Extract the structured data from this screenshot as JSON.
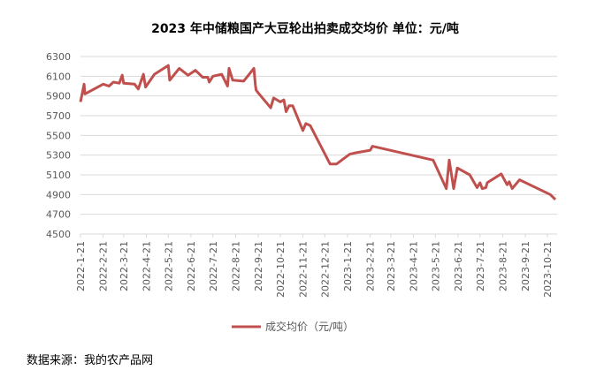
{
  "chart_data": {
    "type": "line",
    "title": "2023 年中储粮国产大豆轮出拍卖成交均价  单位：元/吨",
    "source": "数据来源：我的农产品网",
    "x": [
      "2022-1-21",
      "2022-1-26",
      "2022-1-27",
      "2022-2-21",
      "2022-3-1",
      "2022-3-7",
      "2022-3-15",
      "2022-3-19",
      "2022-3-21",
      "2022-4-5",
      "2022-4-10",
      "2022-4-17",
      "2022-4-20",
      "2022-5-2",
      "2022-5-21",
      "2022-5-23",
      "2022-6-5",
      "2022-6-17",
      "2022-6-27",
      "2022-7-7",
      "2022-7-14",
      "2022-7-16",
      "2022-7-21",
      "2022-8-2",
      "2022-8-10",
      "2022-8-12",
      "2022-8-17",
      "2022-9-1",
      "2022-9-15",
      "2022-9-17",
      "2022-9-18",
      "2022-9-21",
      "2022-10-8",
      "2022-10-12",
      "2022-10-21",
      "2022-10-26",
      "2022-10-29",
      "2022-11-2",
      "2022-11-7",
      "2022-11-21",
      "2022-11-25",
      "2022-12-1",
      "2022-12-28",
      "2023-1-6",
      "2023-1-24",
      "2023-1-30",
      "2023-2-21",
      "2023-2-24",
      "2023-5-18",
      "2023-6-5",
      "2023-6-9",
      "2023-6-15",
      "2023-6-20",
      "2023-7-7",
      "2023-7-17",
      "2023-7-21",
      "2023-7-24",
      "2023-7-29",
      "2023-7-31",
      "2023-8-19",
      "2023-8-27",
      "2023-8-30",
      "2023-9-3",
      "2023-9-13",
      "2023-10-25",
      "2023-11-1"
    ],
    "series": [
      {
        "name": "成交均价（元/吨）",
        "color": "#c0504d",
        "values": [
          5840,
          6020,
          5920,
          6020,
          6000,
          6040,
          6030,
          6110,
          6030,
          6020,
          5970,
          6120,
          5990,
          6120,
          6210,
          6060,
          6180,
          6110,
          6160,
          6090,
          6090,
          6040,
          6100,
          6120,
          6000,
          6180,
          6060,
          6050,
          6180,
          6010,
          5960,
          5930,
          5780,
          5880,
          5840,
          5860,
          5740,
          5800,
          5800,
          5550,
          5620,
          5600,
          5210,
          5210,
          5310,
          5320,
          5350,
          5390,
          5250,
          4960,
          5250,
          4960,
          5170,
          5100,
          4970,
          5020,
          4960,
          4970,
          5020,
          5110,
          5000,
          5030,
          4960,
          5050,
          4900,
          4850
        ]
      }
    ],
    "xlim": [
      "2022-1-21",
      "2023-11-1"
    ],
    "xticks": [
      "2022-1-21",
      "2022-2-21",
      "2022-3-21",
      "2022-4-21",
      "2022-5-21",
      "2022-6-21",
      "2022-7-21",
      "2022-8-21",
      "2022-9-21",
      "2022-10-21",
      "2022-11-21",
      "2022-12-21",
      "2023-1-21",
      "2023-2-21",
      "2023-3-21",
      "2023-4-21",
      "2023-5-21",
      "2023-6-21",
      "2023-7-21",
      "2023-8-21",
      "2023-9-21",
      "2023-10-21"
    ],
    "ylim": [
      4500,
      6300
    ],
    "yticks": [
      4500,
      4700,
      4900,
      5100,
      5300,
      5500,
      5700,
      5900,
      6100,
      6300
    ],
    "grid": true,
    "legend": "bottom"
  }
}
